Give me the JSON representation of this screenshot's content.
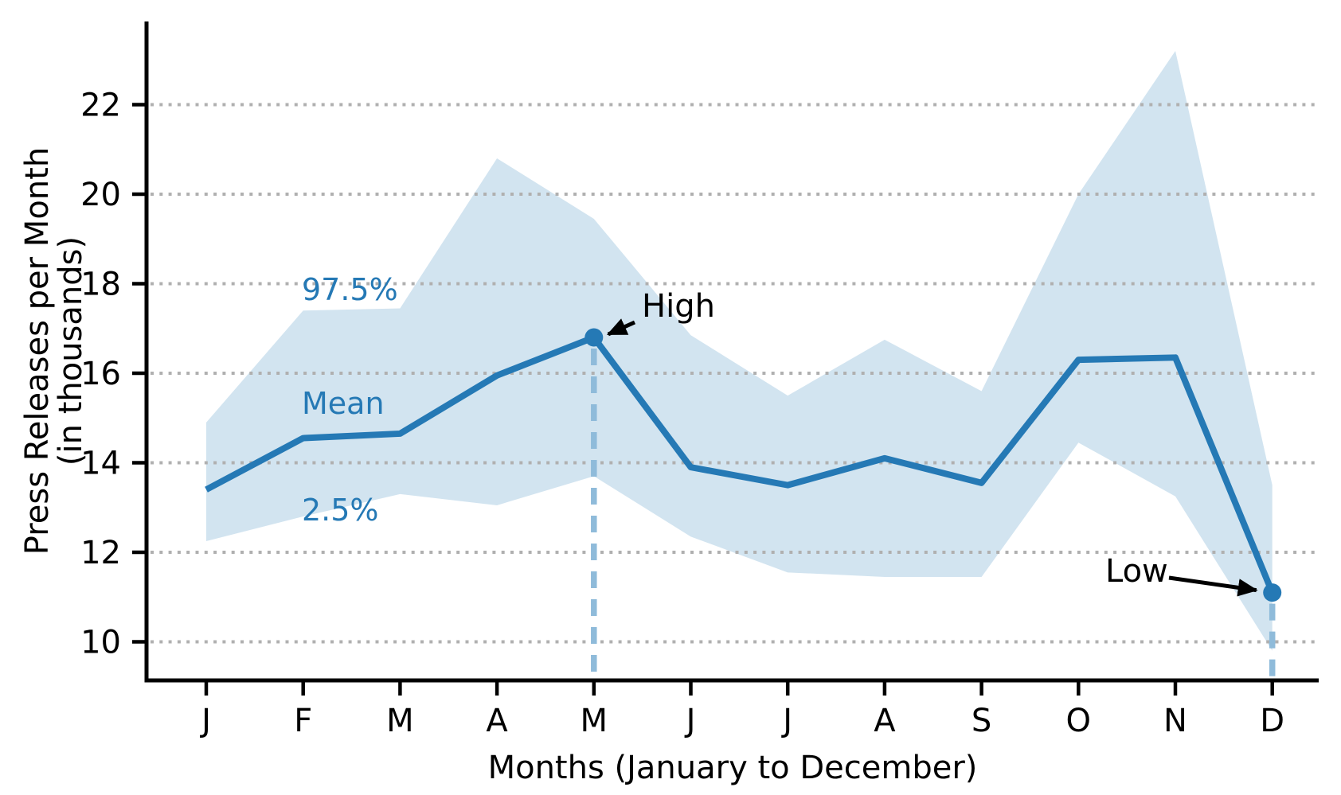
{
  "chart_data": {
    "type": "line",
    "title": "",
    "xlabel": "Months (January to December)",
    "ylabel_line1": "Press Releases per Month",
    "ylabel_line2": "(in thousands)",
    "categories": [
      "J",
      "F",
      "M",
      "A",
      "M",
      "J",
      "J",
      "A",
      "S",
      "O",
      "N",
      "D"
    ],
    "y_ticks": [
      10,
      12,
      14,
      16,
      18,
      20,
      22
    ],
    "ylim": [
      9.1,
      23.9
    ],
    "grid": "dotted-horizontal",
    "legend_position": "none",
    "series": [
      {
        "name": "Mean",
        "role": "mean",
        "values": [
          13.4,
          14.55,
          14.65,
          15.95,
          16.8,
          13.9,
          13.5,
          14.1,
          13.55,
          16.3,
          16.35,
          11.1
        ]
      },
      {
        "name": "97.5%",
        "role": "band-upper",
        "values": [
          14.9,
          17.4,
          17.45,
          20.8,
          19.45,
          16.85,
          15.5,
          16.75,
          15.6,
          20.0,
          23.2,
          13.5
        ]
      },
      {
        "name": "2.5%",
        "role": "band-lower",
        "values": [
          12.25,
          12.8,
          13.3,
          13.05,
          13.7,
          12.35,
          11.55,
          11.45,
          11.45,
          14.45,
          13.25,
          9.8
        ]
      }
    ],
    "band_labels": {
      "upper": "97.5%",
      "mean": "Mean",
      "lower": "2.5%"
    },
    "annotations": {
      "high": {
        "label": "High",
        "category": "M",
        "month_index": 4,
        "value": 16.8
      },
      "low": {
        "label": "Low",
        "category": "D",
        "month_index": 11,
        "value": 11.1
      }
    },
    "markers": {
      "high_month_index": 4,
      "low_month_index": 11,
      "style": "dashed-drop-line"
    },
    "colors": {
      "line": "#2579b5",
      "band": "#d2e4f0",
      "drop_line": "#8fbbda",
      "grid": "#b0b0b0",
      "text": "#000000",
      "annotation_arrow": "#000000",
      "band_label_text": "#2579b5",
      "background": "#ffffff"
    }
  }
}
